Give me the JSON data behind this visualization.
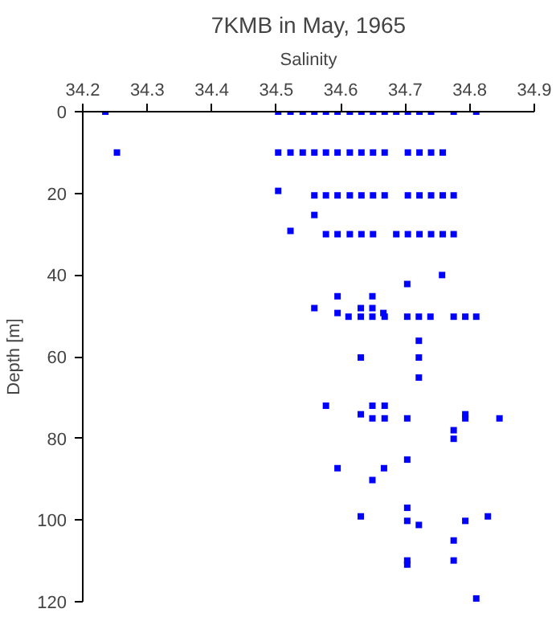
{
  "chart_data": {
    "type": "scatter",
    "title": "7KMB in May, 1965",
    "xlabel": "Salinity",
    "ylabel": "Depth [m]",
    "xlim": [
      34.2,
      34.9
    ],
    "xticks": [
      34.2,
      34.3,
      34.4,
      34.5,
      34.6,
      34.7,
      34.8,
      34.9
    ],
    "ylim": [
      120,
      0
    ],
    "yticks": [
      0,
      20,
      40,
      60,
      80,
      100,
      120
    ],
    "grid": false,
    "marker": "square",
    "series": [
      {
        "color": "#0000ff",
        "x": [
          34.235,
          34.503,
          34.522,
          34.541,
          34.559,
          34.577,
          34.595,
          34.614,
          34.632,
          34.65,
          34.668,
          34.686,
          34.704,
          34.722,
          34.74,
          34.775,
          34.81,
          34.253,
          34.503,
          34.522,
          34.541,
          34.559,
          34.577,
          34.595,
          34.614,
          34.632,
          34.65,
          34.668,
          34.704,
          34.722,
          34.74,
          34.758,
          34.503,
          34.559,
          34.577,
          34.595,
          34.614,
          34.632,
          34.65,
          34.668,
          34.704,
          34.722,
          34.74,
          34.758,
          34.775,
          34.559,
          34.522,
          34.577,
          34.595,
          34.614,
          34.632,
          34.65,
          34.686,
          34.704,
          34.722,
          34.74,
          34.758,
          34.775,
          34.757,
          34.703,
          34.595,
          34.649,
          34.559,
          34.631,
          34.649,
          34.595,
          34.666,
          34.612,
          34.631,
          34.649,
          34.668,
          34.703,
          34.721,
          34.739,
          34.775,
          34.793,
          34.81,
          34.721,
          34.631,
          34.721,
          34.721,
          34.577,
          34.649,
          34.668,
          34.631,
          34.793,
          34.649,
          34.668,
          34.703,
          34.793,
          34.846,
          34.775,
          34.775,
          34.703,
          34.595,
          34.667,
          34.649,
          34.703,
          34.631,
          34.828,
          34.703,
          34.793,
          34.721,
          34.775,
          34.703,
          34.775,
          34.703,
          34.81
        ],
        "values": [
          0,
          0,
          0,
          0,
          0,
          0,
          0,
          0,
          0,
          0,
          0,
          0,
          0,
          0,
          0,
          0,
          0,
          10,
          10,
          10,
          10,
          10,
          10,
          10,
          10,
          10,
          10,
          10,
          10,
          10,
          10,
          10,
          19.4,
          20.5,
          20.5,
          20.5,
          20.5,
          20.5,
          20.5,
          20.5,
          20.5,
          20.5,
          20.5,
          20.5,
          20.5,
          25.3,
          29.2,
          30,
          30,
          30,
          30,
          30,
          30,
          30,
          30,
          30,
          30,
          30,
          40,
          42.2,
          45.2,
          45.2,
          48.1,
          48.1,
          48.1,
          49.3,
          49.3,
          50.2,
          50.2,
          50.2,
          50.2,
          50.2,
          50.2,
          50.2,
          50.2,
          50.2,
          50.2,
          56.1,
          60.2,
          60.2,
          65.1,
          72,
          72,
          72,
          74.1,
          74.1,
          75.1,
          75.1,
          75.1,
          75.1,
          75.1,
          78,
          80.1,
          85.2,
          87.3,
          87.3,
          90.2,
          97,
          99.1,
          99.1,
          100.2,
          100.2,
          101.2,
          105,
          109.9,
          109.9,
          110.9,
          119.2
        ]
      }
    ]
  }
}
